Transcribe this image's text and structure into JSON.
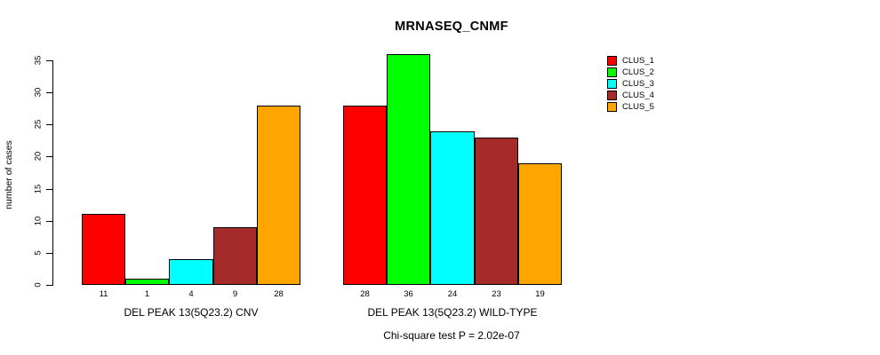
{
  "chart_data": {
    "type": "bar",
    "title": "MRNASEQ_CNMF",
    "xlabel": "",
    "ylabel": "number of cases",
    "ylim": [
      0,
      35
    ],
    "yticks": [
      0,
      5,
      10,
      15,
      20,
      25,
      30,
      35
    ],
    "grid": false,
    "legend_position": "top-right",
    "series_names": [
      "CLUS_1",
      "CLUS_2",
      "CLUS_3",
      "CLUS_4",
      "CLUS_5"
    ],
    "colors": [
      "#ff0000",
      "#00ff00",
      "#00ffff",
      "#a52a2a",
      "#ffa500"
    ],
    "groups": [
      {
        "label": "DEL PEAK 13(5Q23.2) CNV",
        "values": [
          11,
          1,
          4,
          9,
          28
        ],
        "bar_labels": [
          "11",
          "1",
          "4",
          "9",
          "28"
        ]
      },
      {
        "label": "DEL PEAK 13(5Q23.2) WILD-TYPE",
        "values": [
          28,
          36,
          24,
          23,
          19
        ],
        "bar_labels": [
          "28",
          "36",
          "24",
          "23",
          "19"
        ]
      }
    ],
    "annotation": "Chi-square test P = 2.02e-07"
  }
}
